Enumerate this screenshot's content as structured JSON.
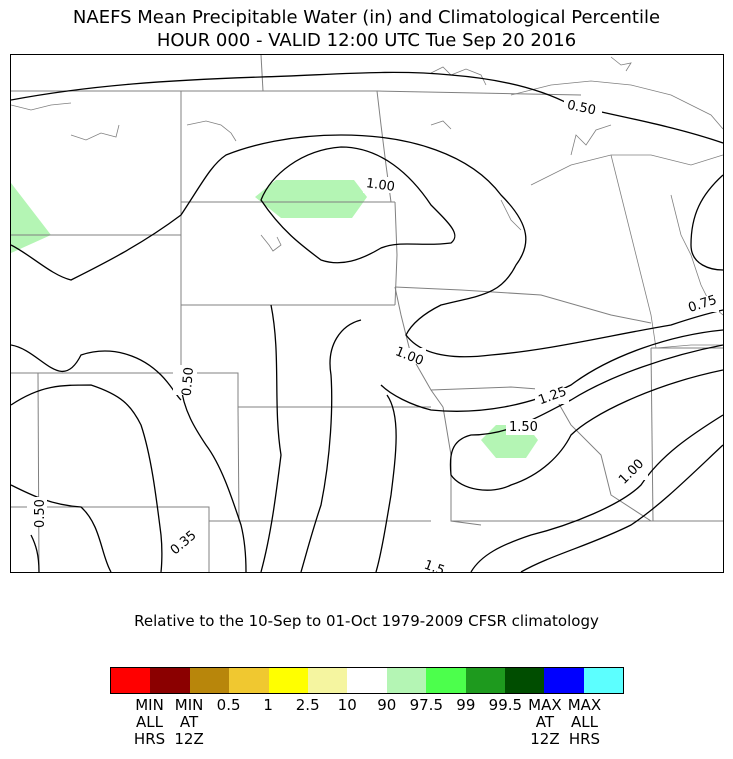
{
  "title_line1": "NAEFS Mean Precipitable Water (in) and Climatological Percentile",
  "title_line2": "HOUR 000 - VALID 12:00 UTC Tue Sep 20 2016",
  "subtitle": "Relative to the 10-Sep to 01-Oct 1979-2009 CFSR climatology",
  "contour_labels": [
    "0.50",
    "1.00",
    "0.75",
    "1.00",
    "1.25",
    "1.50",
    "1.00",
    "0.50",
    "0.50",
    "0.35",
    "1.5"
  ],
  "colorbar": {
    "colors": [
      "#ff0000",
      "#8b0000",
      "#b8860b",
      "#f0c830",
      "#ffff00",
      "#f5f5a0",
      "#ffffff",
      "#b4f5b4",
      "#4cff4c",
      "#1e9a1e",
      "#004d00",
      "#0000ff",
      "#5cffff"
    ],
    "labels": [
      "MIN\nALL\nHRS",
      "MIN\nAT\n12Z",
      "0.5",
      "1",
      "2.5",
      "10",
      "90",
      "97.5",
      "99",
      "99.5",
      "MAX\nAT\n12Z",
      "MAX\nALL\nHRS"
    ]
  },
  "shaded_category_color": "#b4f5b4"
}
